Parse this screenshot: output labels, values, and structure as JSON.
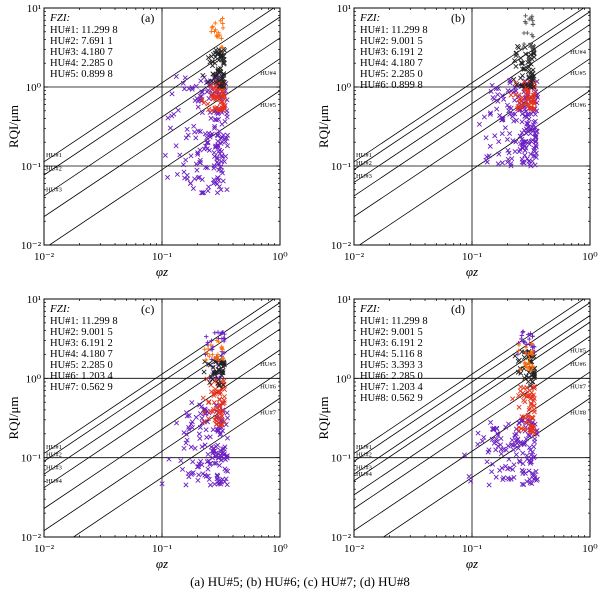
{
  "caption": "(a) HU#5; (b) HU#6; (c) HU#7; (d) HU#8",
  "colors": {
    "purple": "#6a1fc2",
    "red": "#e8321a",
    "black": "#222222",
    "orange": "#ff6a00",
    "line": "#000000"
  },
  "chart_data": [
    {
      "type": "scatter",
      "panel_label": "(a)",
      "xlabel": "φz",
      "ylabel": "RQI/μm",
      "xscale": "log",
      "yscale": "log",
      "xlim": [
        0.01,
        1
      ],
      "ylim": [
        0.01,
        10
      ],
      "x_ticks": [
        "10⁻²",
        "10⁻¹",
        "10⁰"
      ],
      "y_ticks": [
        "10⁻²",
        "10⁻¹",
        "10⁰",
        "10¹"
      ],
      "legend_title": "FZI:",
      "fzi_legend": [
        "HU#1: 11.299 8",
        "HU#2: 7.691 1",
        "HU#3: 4.180 7",
        "HU#4: 2.285 0",
        "HU#5: 0.899 8"
      ],
      "fzi_values": [
        11.2998,
        7.6911,
        4.1807,
        2.285,
        0.8998
      ],
      "line_labels": [
        "HU#1",
        "HU#2",
        "HU#3",
        "HU#4",
        "HU#5"
      ],
      "reference_lines": {
        "x": 0.1,
        "y": [
          1,
          0.1
        ]
      },
      "series": [
        {
          "marker": "x",
          "color": "#6a1fc2",
          "x_range": [
            0.08,
            0.36
          ],
          "y_range": [
            0.045,
            1.4
          ],
          "count": 190
        },
        {
          "marker": "x",
          "color": "#e8321a",
          "x_range": [
            0.2,
            0.34
          ],
          "y_range": [
            0.5,
            1.2
          ],
          "count": 60
        },
        {
          "marker": "x",
          "color": "#222222",
          "x_range": [
            0.2,
            0.34
          ],
          "y_range": [
            1.0,
            3.0
          ],
          "count": 60
        },
        {
          "marker": "+",
          "color": "#ff6a00",
          "x_range": [
            0.22,
            0.33
          ],
          "y_range": [
            3.0,
            8.0
          ],
          "count": 18
        }
      ]
    },
    {
      "type": "scatter",
      "panel_label": "(b)",
      "xlabel": "φz",
      "ylabel": "RQI/μm",
      "xscale": "log",
      "yscale": "log",
      "xlim": [
        0.01,
        1
      ],
      "ylim": [
        0.01,
        10
      ],
      "x_ticks": [
        "10⁻²",
        "10⁻¹",
        "10⁰"
      ],
      "y_ticks": [
        "10⁻²",
        "10⁻¹",
        "10⁰",
        "10¹"
      ],
      "legend_title": "FZI:",
      "fzi_legend": [
        "HU#1: 11.299 8",
        "HU#2: 9.001 5",
        "HU#3: 6.191 2",
        "HU#4: 4.180 7",
        "HU#5: 2.285 0",
        "HU#6: 0.899 8"
      ],
      "fzi_values": [
        11.2998,
        9.0015,
        6.1912,
        4.1807,
        2.285,
        0.8998
      ],
      "line_labels": [
        "HU#1",
        "HU#2",
        "HU#3",
        "HU#4",
        "HU#5",
        "HU#6"
      ],
      "reference_lines": {
        "x": 0.1,
        "y": [
          1,
          0.1
        ]
      },
      "series": [
        {
          "marker": "x",
          "color": "#6a1fc2",
          "x_range": [
            0.1,
            0.36
          ],
          "y_range": [
            0.1,
            1.3
          ],
          "count": 190
        },
        {
          "marker": "x",
          "color": "#e8321a",
          "x_range": [
            0.2,
            0.34
          ],
          "y_range": [
            0.5,
            1.2
          ],
          "count": 60
        },
        {
          "marker": "x",
          "color": "#222222",
          "x_range": [
            0.2,
            0.34
          ],
          "y_range": [
            1.0,
            3.5
          ],
          "count": 60
        },
        {
          "marker": "+",
          "color": "#555555",
          "x_range": [
            0.22,
            0.33
          ],
          "y_range": [
            3.0,
            8.0
          ],
          "count": 18
        }
      ]
    },
    {
      "type": "scatter",
      "panel_label": "(c)",
      "xlabel": "φz",
      "ylabel": "RQI/μm",
      "xscale": "log",
      "yscale": "log",
      "xlim": [
        0.01,
        1
      ],
      "ylim": [
        0.01,
        10
      ],
      "x_ticks": [
        "10⁻²",
        "10⁻¹",
        "10⁰"
      ],
      "y_ticks": [
        "10⁻²",
        "10⁻¹",
        "10⁰",
        "10¹"
      ],
      "legend_title": "FZI:",
      "fzi_legend": [
        "HU#1: 11.299 8",
        "HU#2: 9.001 5",
        "HU#3: 6.191 2",
        "HU#4: 4.180 7",
        "HU#5: 2.285 0",
        "HU#6: 1.203 4",
        "HU#7: 0.562 9"
      ],
      "fzi_values": [
        11.2998,
        9.0015,
        6.1912,
        4.1807,
        2.285,
        1.2034,
        0.5629
      ],
      "line_labels": [
        "HU#1",
        "HU#2",
        "HU#3",
        "HU#4",
        "HU#5",
        "HU#6",
        "HU#7"
      ],
      "reference_lines": {
        "x": 0.1,
        "y": [
          1,
          0.1
        ]
      },
      "series": [
        {
          "marker": "x",
          "color": "#6a1fc2",
          "x_range": [
            0.08,
            0.36
          ],
          "y_range": [
            0.045,
            0.5
          ],
          "count": 150
        },
        {
          "marker": "+",
          "color": "#6a1fc2",
          "x_range": [
            0.2,
            0.34
          ],
          "y_range": [
            1.0,
            4.0
          ],
          "count": 40
        },
        {
          "marker": "x",
          "color": "#e8321a",
          "x_range": [
            0.2,
            0.34
          ],
          "y_range": [
            0.25,
            1.0
          ],
          "count": 60
        },
        {
          "marker": "x",
          "color": "#222222",
          "x_range": [
            0.2,
            0.34
          ],
          "y_range": [
            0.8,
            1.8
          ],
          "count": 40
        },
        {
          "marker": "+",
          "color": "#ff6a00",
          "x_range": [
            0.2,
            0.33
          ],
          "y_range": [
            1.5,
            3.0
          ],
          "count": 20
        }
      ]
    },
    {
      "type": "scatter",
      "panel_label": "(d)",
      "xlabel": "φz",
      "ylabel": "RQI/μm",
      "xscale": "log",
      "yscale": "log",
      "xlim": [
        0.01,
        1
      ],
      "ylim": [
        0.01,
        10
      ],
      "x_ticks": [
        "10⁻²",
        "10⁻¹",
        "10⁰"
      ],
      "y_ticks": [
        "10⁻²",
        "10⁻¹",
        "10⁰",
        "10¹"
      ],
      "legend_title": "FZI:",
      "fzi_legend": [
        "HU#1: 11.299 8",
        "HU#2: 9.001 5",
        "HU#3: 6.191 2",
        "HU#4: 5.116 8",
        "HU#5: 3.393 3",
        "HU#6: 2.285 0",
        "HU#7: 1.203 4",
        "HU#8: 0.562 9"
      ],
      "fzi_values": [
        11.2998,
        9.0015,
        6.1912,
        5.1168,
        3.3933,
        2.285,
        1.2034,
        0.5629
      ],
      "line_labels": [
        "HU#1",
        "HU#2",
        "HU#3",
        "HU#4",
        "HU#5",
        "HU#6",
        "HU#7",
        "HU#8"
      ],
      "reference_lines": {
        "x": 0.1,
        "y": [
          1,
          0.1
        ]
      },
      "series": [
        {
          "marker": "x",
          "color": "#6a1fc2",
          "x_range": [
            0.08,
            0.36
          ],
          "y_range": [
            0.045,
            0.3
          ],
          "count": 140
        },
        {
          "marker": "+",
          "color": "#6a1fc2",
          "x_range": [
            0.2,
            0.34
          ],
          "y_range": [
            2.0,
            4.0
          ],
          "count": 25
        },
        {
          "marker": "x",
          "color": "#e8321a",
          "x_range": [
            0.2,
            0.34
          ],
          "y_range": [
            0.2,
            0.8
          ],
          "count": 60
        },
        {
          "marker": "x",
          "color": "#222222",
          "x_range": [
            0.2,
            0.34
          ],
          "y_range": [
            0.8,
            2.2
          ],
          "count": 45
        },
        {
          "marker": "+",
          "color": "#ff6a00",
          "x_range": [
            0.2,
            0.33
          ],
          "y_range": [
            1.2,
            3.0
          ],
          "count": 25
        }
      ]
    }
  ]
}
